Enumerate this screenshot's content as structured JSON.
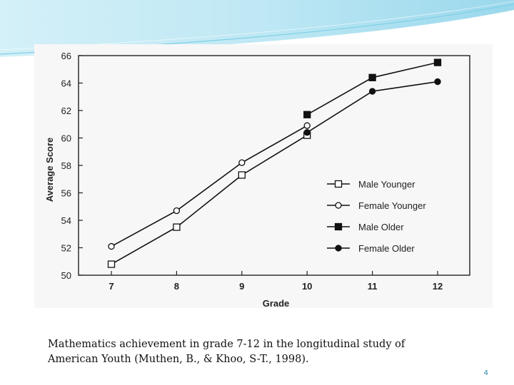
{
  "slide": {
    "caption_line1": "Mathematics achievement in grade 7-12 in the longitudinal study of",
    "caption_line2": "American Youth (Muthen, B., &  Khoo, S-T., 1998).",
    "page_number": "4",
    "accent_color": "#5fc6e0"
  },
  "chart_data": {
    "type": "line",
    "title": "",
    "xlabel": "Grade",
    "ylabel": "Average Score",
    "categories": [
      7,
      8,
      9,
      10,
      11,
      12
    ],
    "ylim": [
      50,
      66
    ],
    "yticks": [
      50,
      52,
      54,
      56,
      58,
      60,
      62,
      64,
      66
    ],
    "grid": false,
    "legend_position": "right",
    "series": [
      {
        "name": "Male Younger",
        "marker": "square-open",
        "x": [
          7,
          8,
          9,
          10
        ],
        "values": [
          50.8,
          53.5,
          57.3,
          60.2
        ]
      },
      {
        "name": "Female Younger",
        "marker": "circle-open",
        "x": [
          7,
          8,
          9,
          10
        ],
        "values": [
          52.1,
          54.7,
          58.2,
          60.9
        ]
      },
      {
        "name": "Male Older",
        "marker": "square-filled",
        "x": [
          10,
          11,
          12
        ],
        "values": [
          61.7,
          64.4,
          65.5
        ]
      },
      {
        "name": "Female Older",
        "marker": "circle-filled",
        "x": [
          10,
          11,
          12
        ],
        "values": [
          60.4,
          63.4,
          64.1
        ]
      }
    ]
  }
}
